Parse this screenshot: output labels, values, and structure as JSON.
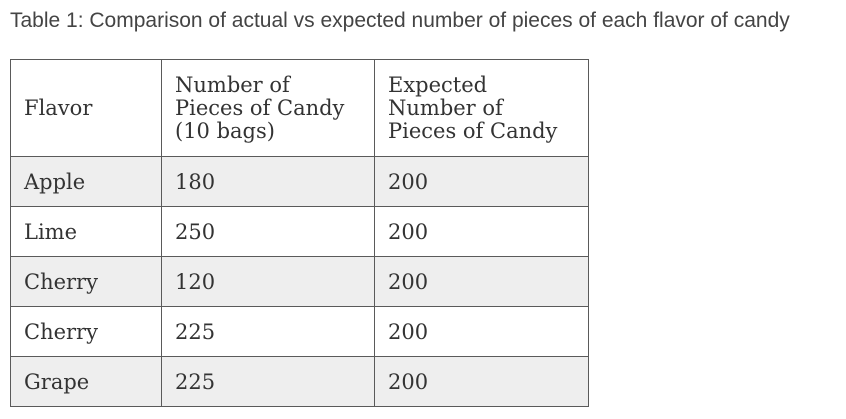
{
  "caption": "Table 1: Comparison of actual vs expected number of pieces of each flavor of candy",
  "table": {
    "headers": [
      {
        "lines": [
          "Flavor"
        ]
      },
      {
        "lines": [
          "Number of",
          "Pieces of Candy",
          "(10 bags)"
        ]
      },
      {
        "lines": [
          "Expected",
          "Number of",
          "Pieces of Candy"
        ]
      }
    ],
    "rows": [
      {
        "flavor": "Apple",
        "actual": "180",
        "expected": "200"
      },
      {
        "flavor": "Lime",
        "actual": "250",
        "expected": "200"
      },
      {
        "flavor": "Cherry",
        "actual": "120",
        "expected": "200"
      },
      {
        "flavor": "Cherry",
        "actual": "225",
        "expected": "200"
      },
      {
        "flavor": "Grape",
        "actual": "225",
        "expected": "200"
      }
    ]
  },
  "colors": {
    "border": "#5a5a5a",
    "stripe": "#eeeeee",
    "text": "#333333"
  }
}
